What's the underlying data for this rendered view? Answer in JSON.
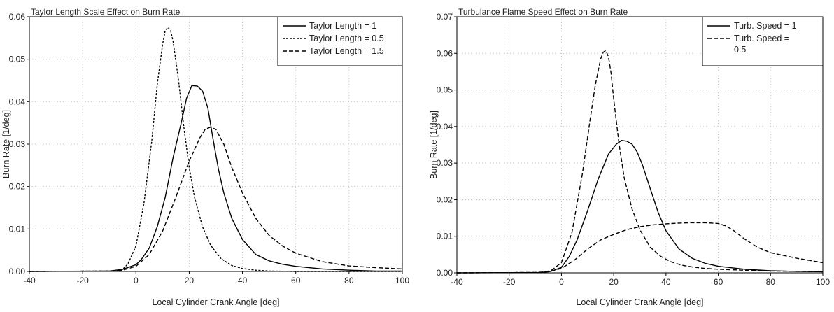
{
  "chart_data": [
    {
      "type": "line",
      "title": "Taylor Length Scale Effect on Burn Rate",
      "xlabel": "Local Cylinder Crank Angle [deg]",
      "ylabel": "Burn Rate [1/deg]",
      "xlim": [
        -40,
        100
      ],
      "ylim": [
        0,
        0.06
      ],
      "xticks": [
        -40,
        -20,
        0,
        20,
        40,
        60,
        80,
        100
      ],
      "xtick_labels": [
        "-40",
        "-20",
        "0",
        "20",
        "40",
        "60",
        "80",
        "100"
      ],
      "yticks": [
        0,
        0.01,
        0.02,
        0.03,
        0.04,
        0.05,
        0.06
      ],
      "ytick_labels": [
        "0.00",
        "0.01",
        "0.02",
        "0.03",
        "0.04",
        "0.05",
        "0.06"
      ],
      "grid": true,
      "legend_position": "top-right",
      "series": [
        {
          "name": "Taylor Length = 1",
          "style": "solid",
          "x": [
            -40,
            -10,
            -5,
            0,
            2,
            5,
            8,
            11,
            14,
            17,
            19,
            21,
            23,
            25,
            27,
            29,
            31,
            33,
            36,
            40,
            45,
            50,
            55,
            60,
            70,
            80,
            90,
            100
          ],
          "y": [
            0,
            0.0001,
            0.0005,
            0.0016,
            0.0028,
            0.0055,
            0.0105,
            0.0175,
            0.027,
            0.035,
            0.0408,
            0.0438,
            0.0437,
            0.0425,
            0.0385,
            0.031,
            0.024,
            0.0185,
            0.0125,
            0.0075,
            0.004,
            0.0025,
            0.0017,
            0.0012,
            0.0006,
            0.0003,
            0.0001,
            0.0001
          ]
        },
        {
          "name": "Taylor Length = 0.5",
          "style": "dotted",
          "x": [
            -40,
            -8,
            -5,
            -3,
            0,
            3,
            6,
            8,
            10,
            11,
            12,
            13,
            14,
            16,
            18,
            20,
            22,
            25,
            28,
            32,
            36,
            40,
            45,
            50,
            60,
            70,
            80,
            100
          ],
          "y": [
            0,
            0.0001,
            0.0005,
            0.0018,
            0.006,
            0.016,
            0.031,
            0.044,
            0.0535,
            0.0568,
            0.0575,
            0.0568,
            0.054,
            0.045,
            0.034,
            0.0245,
            0.0175,
            0.0105,
            0.0062,
            0.003,
            0.0014,
            0.0007,
            0.0003,
            0.0001,
            0,
            0,
            0,
            0
          ]
        },
        {
          "name": "Taylor Length = 1.5",
          "style": "dashed",
          "x": [
            -40,
            -10,
            -5,
            0,
            5,
            10,
            15,
            20,
            24,
            26,
            28,
            30,
            33,
            36,
            40,
            45,
            50,
            55,
            60,
            70,
            80,
            90,
            100
          ],
          "y": [
            0,
            0.0001,
            0.0003,
            0.0012,
            0.004,
            0.0095,
            0.0175,
            0.026,
            0.0315,
            0.0335,
            0.034,
            0.0335,
            0.03,
            0.0245,
            0.0185,
            0.0125,
            0.0085,
            0.006,
            0.0043,
            0.0023,
            0.0013,
            0.0009,
            0.0006
          ]
        }
      ]
    },
    {
      "type": "line",
      "title": "Turbulance Flame Speed Effect on Burn Rate",
      "xlabel": "Local Cylinder Crank Angle [deg]",
      "ylabel": "Burn Rate [1/deg]",
      "xlim": [
        -40,
        100
      ],
      "ylim": [
        0,
        0.07
      ],
      "xticks": [
        -40,
        -20,
        0,
        20,
        40,
        60,
        80,
        100
      ],
      "xtick_labels": [
        "-40",
        "-20",
        "0",
        "20",
        "40",
        "60",
        "80",
        "100"
      ],
      "yticks": [
        0,
        0.01,
        0.02,
        0.03,
        0.04,
        0.05,
        0.06,
        0.07
      ],
      "ytick_labels": [
        "0.00",
        "0.01",
        "0.02",
        "0.03",
        "0.04",
        "0.05",
        "0.06",
        "0.07"
      ],
      "grid": true,
      "legend_position": "top-right",
      "series": [
        {
          "name": "Turb. Speed = 1",
          "style": "solid",
          "x": [
            -40,
            -8,
            -4,
            0,
            3,
            6,
            10,
            14,
            18,
            21,
            23,
            25,
            27,
            29,
            31,
            34,
            37,
            40,
            45,
            50,
            55,
            60,
            70,
            80,
            90,
            100
          ],
          "y": [
            0,
            0.0001,
            0.0004,
            0.0015,
            0.0045,
            0.009,
            0.017,
            0.0255,
            0.0325,
            0.0352,
            0.0362,
            0.036,
            0.0352,
            0.033,
            0.0295,
            0.023,
            0.0165,
            0.0115,
            0.0065,
            0.004,
            0.0026,
            0.0018,
            0.001,
            0.0006,
            0.0004,
            0.0003
          ]
        },
        {
          "name": "Turb. Speed = 0.5",
          "legend_lines": [
            "Turb. Speed =",
            "0.5"
          ],
          "style": "dashed",
          "x": [
            -40,
            -10,
            -5,
            0,
            5,
            10,
            15,
            20,
            25,
            30,
            35,
            40,
            45,
            50,
            55,
            60,
            63,
            66,
            70,
            75,
            80,
            90,
            100
          ],
          "y": [
            0,
            0.0001,
            0.0003,
            0.0012,
            0.0035,
            0.0065,
            0.009,
            0.0105,
            0.0118,
            0.0126,
            0.0131,
            0.0134,
            0.0136,
            0.0137,
            0.0137,
            0.0135,
            0.0128,
            0.0115,
            0.0093,
            0.007,
            0.0055,
            0.004,
            0.0028
          ]
        },
        {
          "name": "",
          "style": "dashed",
          "x": [
            -40,
            -8,
            -4,
            0,
            4,
            8,
            11,
            13,
            15,
            16,
            17,
            18,
            19,
            20,
            22,
            24,
            27,
            30,
            34,
            38,
            42,
            46,
            50,
            55,
            60,
            70,
            80,
            90,
            100
          ],
          "y": [
            0,
            0.0001,
            0.0006,
            0.0028,
            0.011,
            0.027,
            0.042,
            0.0515,
            0.0585,
            0.0603,
            0.0608,
            0.059,
            0.0545,
            0.0475,
            0.0355,
            0.026,
            0.0175,
            0.0118,
            0.007,
            0.0045,
            0.003,
            0.0021,
            0.0016,
            0.0012,
            0.001,
            0.0007,
            0.0005,
            0.0004,
            0.0003
          ]
        }
      ]
    }
  ]
}
